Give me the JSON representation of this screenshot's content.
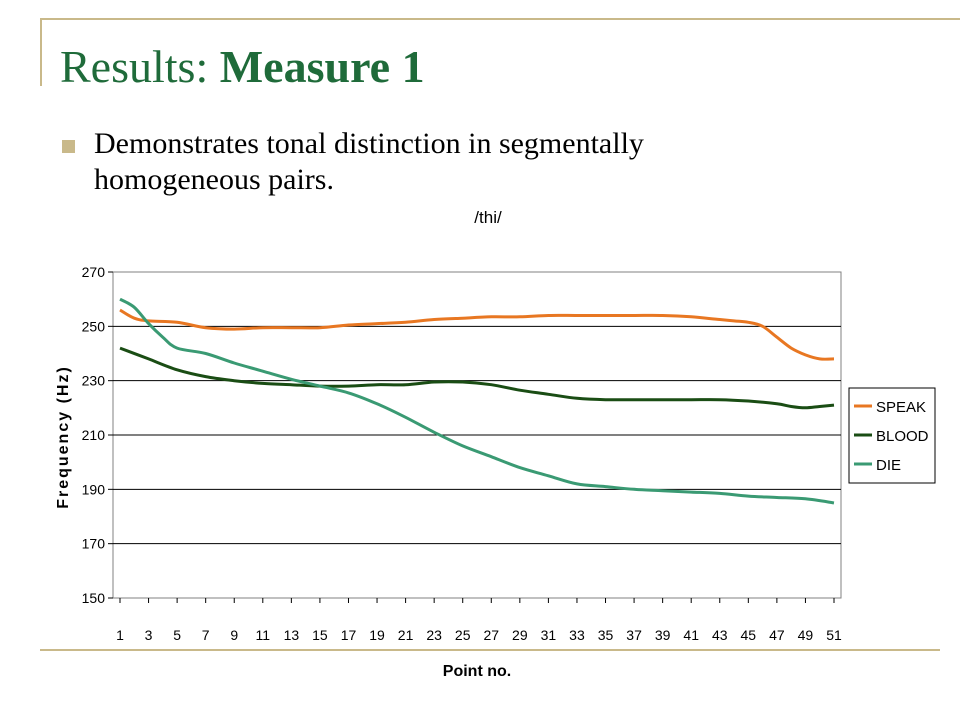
{
  "slide": {
    "title_prefix": "Results: ",
    "title_bold": "Measure 1",
    "bullet": "Demonstrates tonal distinction in segmentally homogeneous pairs."
  },
  "colors": {
    "frame": "#c9b98a",
    "title": "#1f6b3a"
  },
  "chart_data": {
    "type": "line",
    "title": "/thi/",
    "xlabel": "Point no.",
    "ylabel": "Frequency (Hz)",
    "ylim": [
      150,
      270
    ],
    "yticks": [
      150,
      170,
      190,
      210,
      230,
      250,
      270
    ],
    "xlim": [
      1,
      51
    ],
    "xticks": [
      1,
      3,
      5,
      7,
      9,
      11,
      13,
      15,
      17,
      19,
      21,
      23,
      25,
      27,
      29,
      31,
      33,
      35,
      37,
      39,
      41,
      43,
      45,
      47,
      49,
      51
    ],
    "grid": "horizontal",
    "legend": "right",
    "series": [
      {
        "name": "SPEAK",
        "color": "#e87722",
        "x": [
          1,
          2,
          3,
          5,
          7,
          9,
          11,
          13,
          15,
          17,
          19,
          21,
          23,
          25,
          27,
          29,
          31,
          33,
          35,
          37,
          39,
          41,
          43,
          44,
          45,
          46,
          47,
          48,
          49,
          50,
          51
        ],
        "values": [
          256,
          253,
          252,
          251.5,
          249.5,
          249,
          249.5,
          249.5,
          249.5,
          250.5,
          251,
          251.5,
          252.5,
          253,
          253.5,
          253.5,
          254,
          254,
          254,
          254,
          254,
          253.5,
          252.5,
          252,
          251.5,
          250,
          246,
          242,
          239.5,
          238,
          238
        ]
      },
      {
        "name": "BLOOD",
        "color": "#1a4d14",
        "x": [
          1,
          3,
          5,
          7,
          9,
          11,
          13,
          15,
          17,
          19,
          21,
          23,
          25,
          27,
          29,
          31,
          33,
          35,
          37,
          39,
          41,
          43,
          45,
          47,
          48,
          49,
          50,
          51
        ],
        "values": [
          242,
          238,
          234,
          231.5,
          230,
          229,
          228.5,
          228,
          228,
          228.5,
          228.5,
          229.5,
          229.5,
          228.5,
          226.5,
          225,
          223.5,
          223,
          223,
          223,
          223,
          223,
          222.5,
          221.5,
          220.5,
          220,
          220.5,
          221
        ]
      },
      {
        "name": "DIE",
        "color": "#3a9a73",
        "x": [
          1,
          2,
          3,
          4,
          5,
          7,
          9,
          11,
          13,
          15,
          17,
          19,
          21,
          23,
          25,
          27,
          29,
          31,
          33,
          35,
          37,
          39,
          41,
          43,
          45,
          47,
          49,
          51
        ],
        "values": [
          260,
          257,
          251,
          246,
          242,
          240,
          236.5,
          233.5,
          230.5,
          228,
          225.5,
          221.5,
          216.5,
          211,
          206,
          202,
          198,
          195,
          192,
          191,
          190,
          189.5,
          189,
          188.5,
          187.5,
          187,
          186.5,
          185
        ]
      }
    ]
  }
}
